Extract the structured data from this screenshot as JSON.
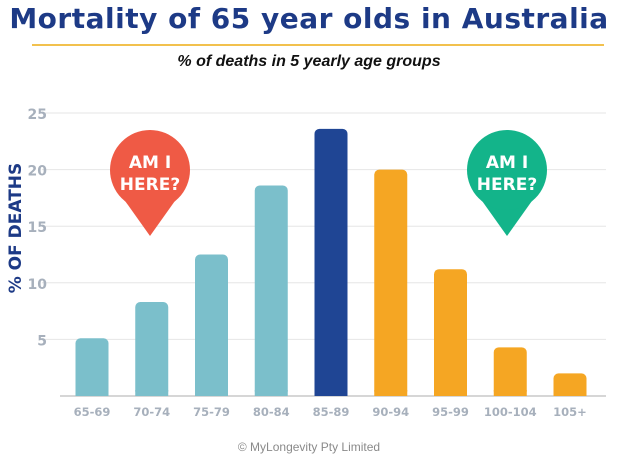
{
  "title": "Mortality of 65 year olds in Australia",
  "subtitle": "% of deaths in 5 yearly age groups",
  "footer": "© MyLongevity Pty Limited",
  "callouts": {
    "left": {
      "text_line1": "AM I",
      "text_line2": "HERE?",
      "color": "#ef5a45"
    },
    "right": {
      "text_line1": "AM I",
      "text_line2": "HERE?",
      "color": "#13b48a"
    }
  },
  "chart_data": {
    "type": "bar",
    "ylabel": "% OF DEATHS",
    "xlabel": "",
    "ylim": [
      0,
      25
    ],
    "yticks": [
      5,
      10,
      15,
      20,
      25
    ],
    "grid": true,
    "categories": [
      "65-69",
      "70-74",
      "75-79",
      "80-84",
      "85-89",
      "90-94",
      "95-99",
      "100-104",
      "105+"
    ],
    "values": [
      5.1,
      8.3,
      12.5,
      18.6,
      23.6,
      20.0,
      11.2,
      4.3,
      2.0
    ],
    "bar_colors": [
      "#7bbfcb",
      "#7bbfcb",
      "#7bbfcb",
      "#7bbfcb",
      "#1f4594",
      "#f5a623",
      "#f5a623",
      "#f5a623",
      "#f5a623"
    ]
  }
}
